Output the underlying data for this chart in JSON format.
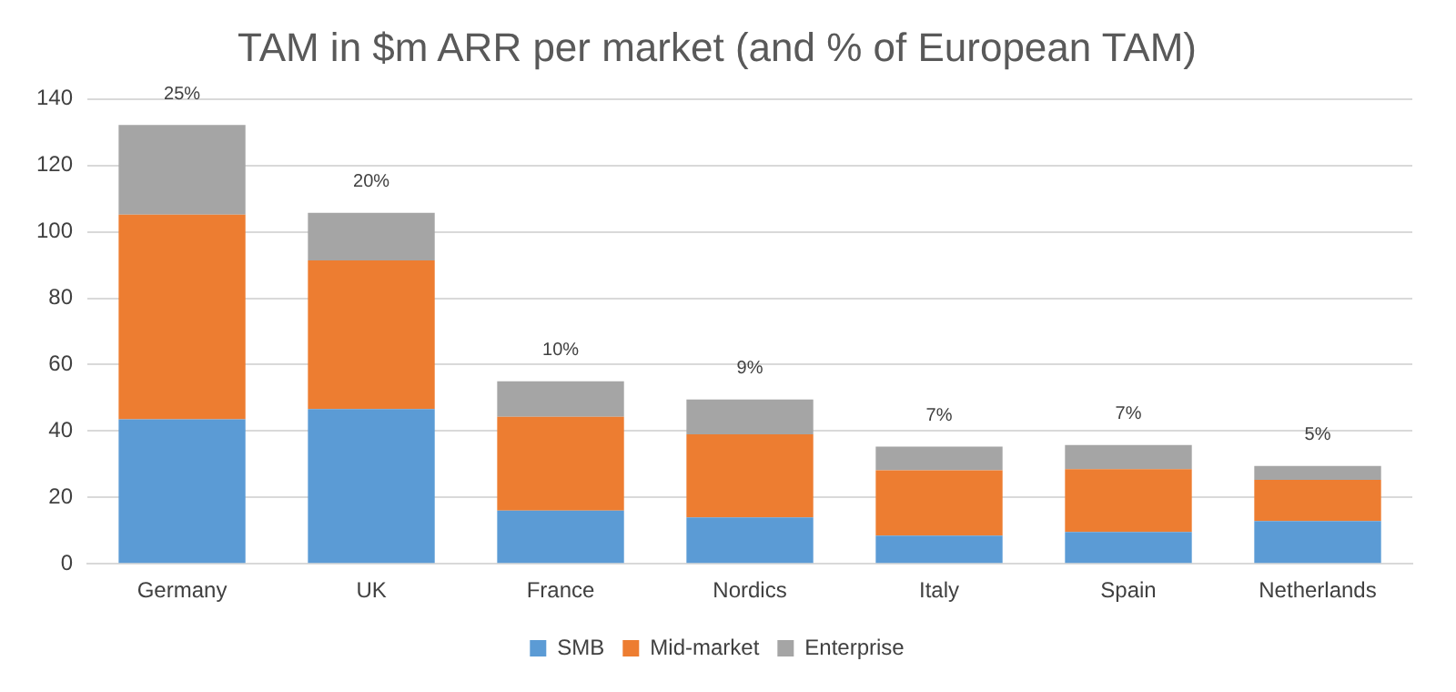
{
  "chart_data": {
    "type": "bar",
    "title": "TAM in $m ARR per market (and % of European TAM)",
    "stacked": true,
    "categories": [
      "Germany",
      "UK",
      "France",
      "Nordics",
      "Italy",
      "Spain",
      "Netherlands"
    ],
    "series": [
      {
        "name": "SMB",
        "color": "#5b9bd5",
        "values": [
          43.5,
          46.6,
          16,
          14,
          8.5,
          9.6,
          12.9
        ]
      },
      {
        "name": "Mid-market",
        "color": "#ed7d31",
        "values": [
          61.7,
          44.8,
          28.3,
          25,
          19.7,
          18.9,
          12.4
        ]
      },
      {
        "name": "Enterprise",
        "color": "#a5a5a5",
        "values": [
          27,
          14.3,
          10.7,
          10.5,
          7.1,
          7.3,
          4.2
        ]
      }
    ],
    "annotations": [
      {
        "text": "25%",
        "x": "Germany",
        "y": 132.2
      },
      {
        "text": "20%",
        "x": "UK",
        "y": 105.7
      },
      {
        "text": "10%",
        "x": "France",
        "y": 55
      },
      {
        "text": "9%",
        "x": "Nordics",
        "y": 49.5
      },
      {
        "text": "7%",
        "x": "Italy",
        "y": 35.3
      },
      {
        "text": "7%",
        "x": "Spain",
        "y": 35.8
      },
      {
        "text": "5%",
        "x": "Netherlands",
        "y": 29.5
      }
    ],
    "ylim": [
      0,
      140
    ],
    "yticks": [
      0,
      20,
      40,
      60,
      80,
      100,
      120,
      140
    ],
    "grid": "y",
    "legend": "bottom"
  }
}
